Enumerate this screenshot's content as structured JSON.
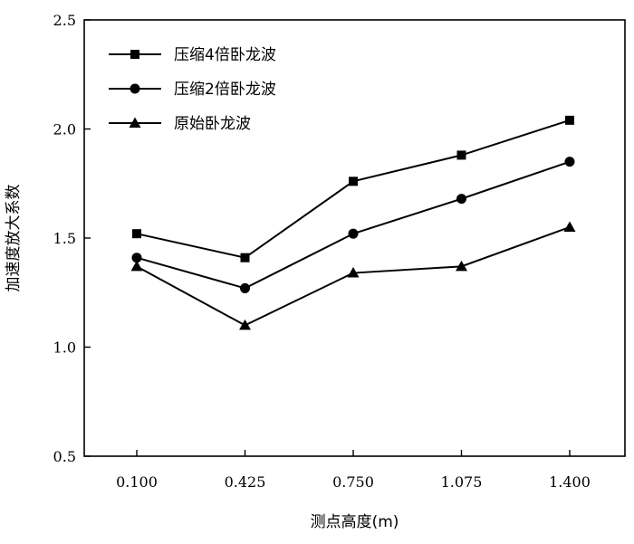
{
  "chart_data": {
    "type": "line",
    "x": [
      "0.100",
      "0.425",
      "0.750",
      "1.075",
      "1.400"
    ],
    "xlabel": "测点高度(m)",
    "ylabel": "加速度放大系数",
    "ylim": [
      0.5,
      2.5
    ],
    "yticks": [
      "0.5",
      "1.0",
      "1.5",
      "2.0",
      "2.5"
    ],
    "grid": false,
    "legend_position": "top-left",
    "series": [
      {
        "name": "压缩4倍卧龙波",
        "marker": "square",
        "values": [
          1.52,
          1.41,
          1.76,
          1.88,
          2.04
        ]
      },
      {
        "name": "压缩2倍卧龙波",
        "marker": "circle",
        "values": [
          1.41,
          1.27,
          1.52,
          1.68,
          1.85
        ]
      },
      {
        "name": "原始卧龙波",
        "marker": "triangle",
        "values": [
          1.37,
          1.1,
          1.34,
          1.37,
          1.55
        ]
      }
    ],
    "line_color": "#000000"
  }
}
